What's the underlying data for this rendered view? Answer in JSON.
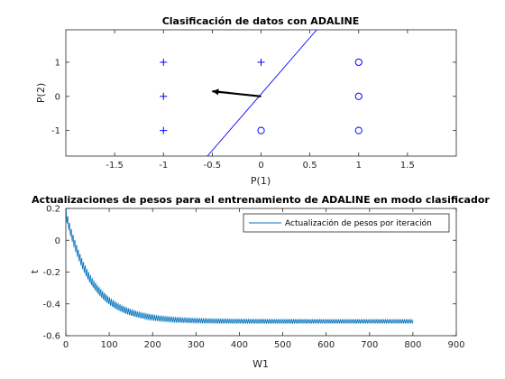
{
  "chart_data": [
    {
      "type": "scatter",
      "title": "Clasificación de datos con ADALINE",
      "xlabel": "P(1)",
      "ylabel": "P(2)",
      "xlim": [
        -2,
        2
      ],
      "ylim": [
        -1.75,
        1.95
      ],
      "xticks": [
        -1.5,
        -1,
        -0.5,
        0,
        0.5,
        1,
        1.5
      ],
      "xtick_labels": [
        "-1.5",
        "-1",
        "-0.5",
        "0",
        "0.5",
        "1",
        "1.5"
      ],
      "yticks": [
        -1,
        0,
        1
      ],
      "ytick_labels": [
        "-1",
        "0",
        "1"
      ],
      "grid": false,
      "color": "#0000ff",
      "series": [
        {
          "marker": "plus",
          "points": [
            [
              -1,
              1
            ],
            [
              0,
              1
            ],
            [
              -1,
              0
            ],
            [
              -1,
              -1
            ]
          ]
        },
        {
          "marker": "circle",
          "points": [
            [
              1,
              1
            ],
            [
              1,
              0
            ],
            [
              1,
              -1
            ],
            [
              0,
              -1
            ]
          ]
        }
      ],
      "decision_boundary": [
        [
          -0.55,
          -1.75
        ],
        [
          0.57,
          1.95
        ]
      ],
      "weight_vector": {
        "from": [
          0,
          0
        ],
        "to": [
          -0.5,
          0.15
        ],
        "color": "#000000"
      }
    },
    {
      "type": "line",
      "title": "Actualizaciones de pesos para el entrenamiento de ADALINE en modo clasificador",
      "xlabel": "W1",
      "ylabel": "t",
      "xlim": [
        0,
        900
      ],
      "ylim": [
        -0.6,
        0.2
      ],
      "xticks": [
        0,
        100,
        200,
        300,
        400,
        500,
        600,
        700,
        800,
        900
      ],
      "xtick_labels": [
        "0",
        "100",
        "200",
        "300",
        "400",
        "500",
        "600",
        "700",
        "800",
        "900"
      ],
      "yticks": [
        -0.6,
        -0.4,
        -0.2,
        0,
        0.2
      ],
      "ytick_labels": [
        "-0.6",
        "-0.4",
        "-0.2",
        "0",
        "0.2"
      ],
      "grid": false,
      "legend_position": "top-right",
      "series": [
        {
          "name": "Actualización de pesos por iteración",
          "color": "#0072bd",
          "iterations": 800,
          "start": 0.17,
          "asymptote": -0.51,
          "decay_constant": 60,
          "oscillation": 0.04,
          "oscillation_period": 4
        }
      ]
    }
  ]
}
